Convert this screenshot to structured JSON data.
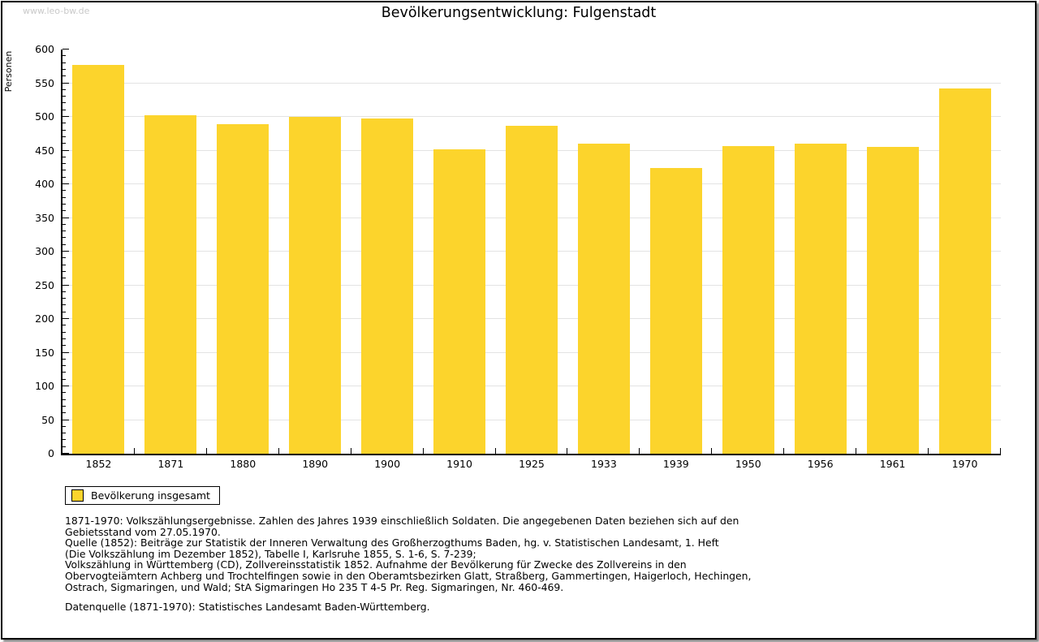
{
  "page": {
    "watermark": "www.leo-bw.de"
  },
  "chart_data": {
    "type": "bar",
    "title": "Bevölkerungsentwicklung: Fulgenstadt",
    "categories": [
      "1852",
      "1871",
      "1880",
      "1890",
      "1900",
      "1910",
      "1925",
      "1933",
      "1939",
      "1950",
      "1956",
      "1961",
      "1970"
    ],
    "values": [
      577,
      502,
      489,
      500,
      498,
      452,
      487,
      460,
      424,
      457,
      460,
      455,
      542
    ],
    "series_name": "Bevölkerung insgesamt",
    "xlabel": "",
    "ylabel": "Personen",
    "ylim": [
      0,
      600
    ],
    "ytick_step": 50,
    "yminor_step": 10,
    "grid": "horizontal-major",
    "legend_position": "below-left",
    "bar_color": "#FCD42C",
    "gridline_color": "#e3e3e3",
    "axis_color": "#000000"
  },
  "legend": {
    "label": "Bevölkerung insgesamt",
    "swatch_color": "#FCD42C"
  },
  "notes": {
    "lines": [
      "1871-1970: Volkszählungsergebnisse. Zahlen des Jahres 1939 einschließlich Soldaten. Die angegebenen Daten beziehen sich auf den",
      "Gebietsstand vom 27.05.1970.",
      "Quelle (1852): Beiträge zur Statistik der Inneren Verwaltung des Großherzogthums Baden, hg. v. Statistischen Landesamt, 1. Heft",
      "(Die Volkszählung im Dezember 1852), Tabelle I, Karlsruhe 1855, S. 1-6, S. 7-239;",
      "Volkszählung in Württemberg (CD), Zollvereinsstatistik 1852. Aufnahme der Bevölkerung für Zwecke des Zollvereins in den",
      "Obervogteiämtern Achberg und Trochtelfingen sowie in den Oberamtsbezirken Glatt, Straßberg, Gammertingen, Haigerloch, Hechingen,",
      "Ostrach, Sigmaringen, und Wald; StA Sigmaringen Ho 235 T 4-5 Pr. Reg. Sigmaringen, Nr. 460-469."
    ],
    "datasource": "Datenquelle (1871-1970): Statistisches Landesamt Baden-Württemberg."
  }
}
